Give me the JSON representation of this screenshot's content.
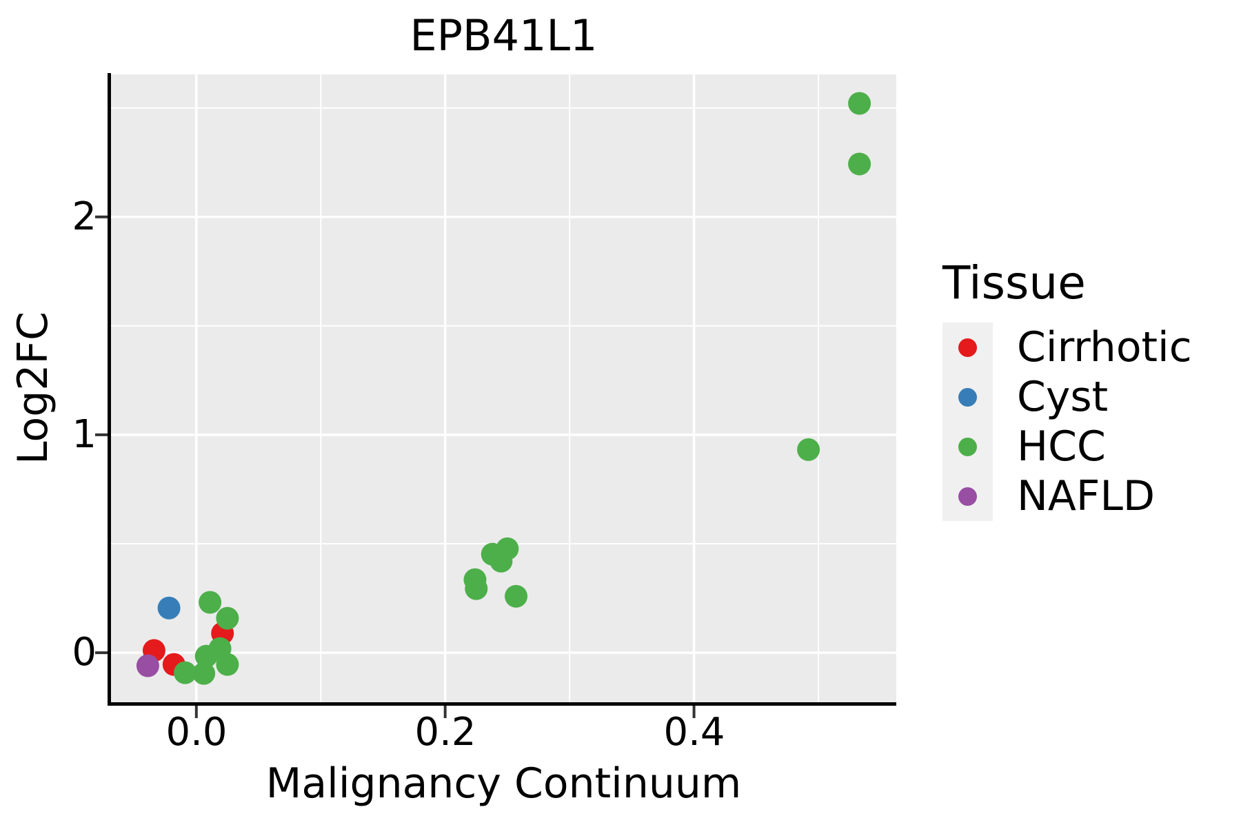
{
  "title": "EPB41L1",
  "axes": {
    "x_label": "Malignancy Continuum",
    "y_label": "Log2FC",
    "x_tick_labels": [
      "0.0",
      "0.2",
      "0.4"
    ],
    "y_tick_labels": [
      "0",
      "1",
      "2"
    ]
  },
  "legend": {
    "title": "Tissue",
    "entries": [
      {
        "label": "Cirrhotic",
        "color": "#E41A1C"
      },
      {
        "label": "Cyst",
        "color": "#377EB8"
      },
      {
        "label": "HCC",
        "color": "#4DAF4A"
      },
      {
        "label": "NAFLD",
        "color": "#984EA3"
      }
    ]
  },
  "chart_data": {
    "type": "scatter",
    "title": "EPB41L1",
    "xlabel": "Malignancy Continuum",
    "ylabel": "Log2FC",
    "xlim": [
      -0.0686,
      0.5626
    ],
    "ylim": [
      -0.2275,
      2.654
    ],
    "x_ticks": [
      {
        "value": 0.0,
        "label": "0.0"
      },
      {
        "value": 0.2,
        "label": "0.2"
      },
      {
        "value": 0.4,
        "label": "0.4"
      }
    ],
    "y_ticks": [
      {
        "value": 0,
        "label": "0"
      },
      {
        "value": 1,
        "label": "1"
      },
      {
        "value": 2,
        "label": "2"
      }
    ],
    "x_minor_ticks": [
      0.1,
      0.3,
      0.5
    ],
    "y_minor_ticks": [
      0.5,
      1.5,
      2.5
    ],
    "grid": "on",
    "legend_position": "right",
    "panel_bg": "#EBEBEB",
    "grid_color": "#FFFFFF",
    "axis_color": "#000000",
    "tick_color": "#333333",
    "point_radius": 16.5,
    "series": [
      {
        "name": "Cirrhotic",
        "color": "#E41A1C",
        "points": [
          [
            -0.034,
            0.01
          ],
          [
            -0.018,
            -0.054
          ],
          [
            0.021,
            0.089
          ]
        ]
      },
      {
        "name": "Cyst",
        "color": "#377EB8",
        "points": [
          [
            -0.022,
            0.205
          ]
        ]
      },
      {
        "name": "HCC",
        "color": "#4DAF4A",
        "points": [
          [
            0.011,
            0.231
          ],
          [
            0.025,
            0.158
          ],
          [
            0.019,
            0.019
          ],
          [
            0.008,
            -0.016
          ],
          [
            0.025,
            -0.054
          ],
          [
            0.006,
            -0.095
          ],
          [
            -0.009,
            -0.092
          ],
          [
            0.238,
            0.452
          ],
          [
            0.25,
            0.477
          ],
          [
            0.245,
            0.42
          ],
          [
            0.224,
            0.335
          ],
          [
            0.225,
            0.294
          ],
          [
            0.257,
            0.259
          ],
          [
            0.492,
            0.932
          ],
          [
            0.533,
            2.521
          ],
          [
            0.533,
            2.243
          ]
        ]
      },
      {
        "name": "NAFLD",
        "color": "#984EA3",
        "points": [
          [
            -0.039,
            -0.06
          ]
        ]
      }
    ]
  }
}
